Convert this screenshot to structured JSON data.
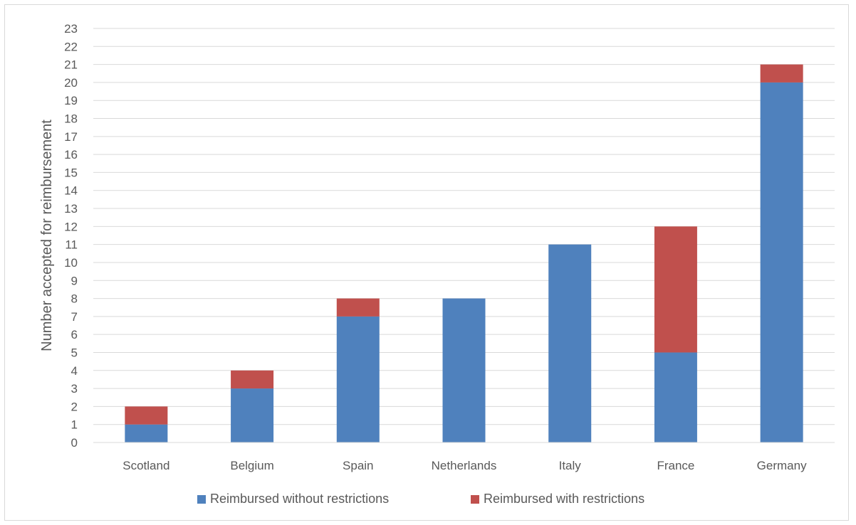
{
  "chart_data": {
    "type": "bar",
    "stacked": true,
    "categories": [
      "Scotland",
      "Belgium",
      "Spain",
      "Netherlands",
      "Italy",
      "France",
      "Germany"
    ],
    "series": [
      {
        "name": "Reimbursed without restrictions",
        "color": "#4f81bd",
        "values": [
          1,
          3,
          7,
          8,
          11,
          5,
          20
        ]
      },
      {
        "name": "Reimbursed with restrictions",
        "color": "#c0504d",
        "values": [
          1,
          1,
          1,
          0,
          0,
          7,
          1
        ]
      }
    ],
    "ylabel": "Number accepted for reimbursement",
    "xlabel": "",
    "ylim": [
      0,
      23
    ],
    "ytick_step": 1,
    "grid": true,
    "legend_position": "bottom"
  }
}
